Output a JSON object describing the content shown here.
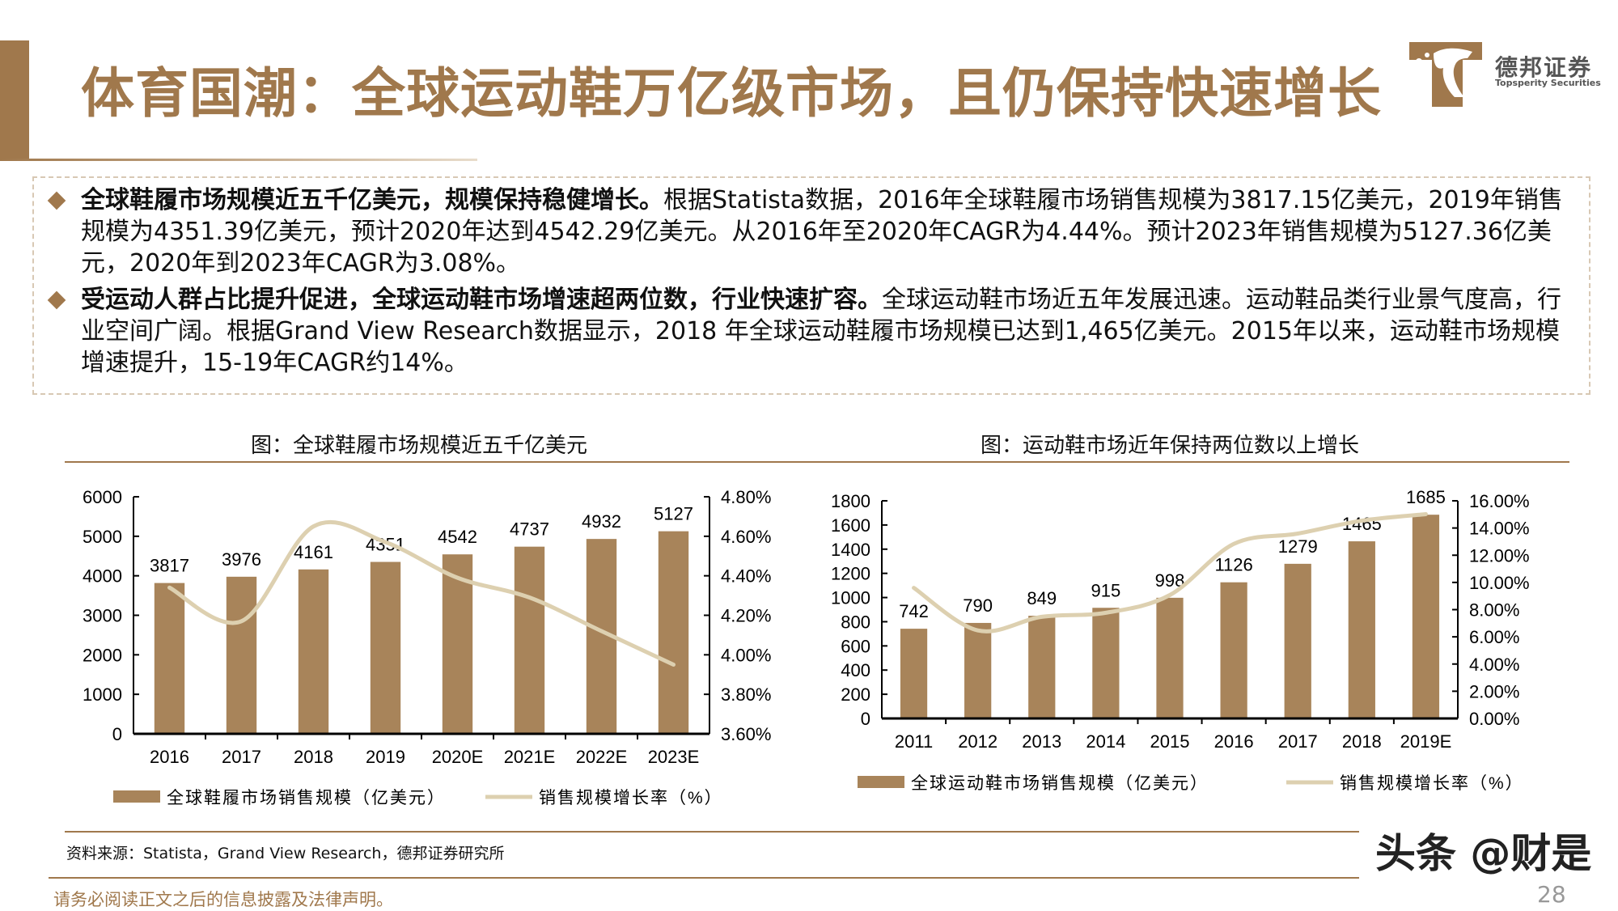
{
  "header": {
    "title": "体育国潮：全球运动鞋万亿级市场，且仍保持快速增长",
    "logo_cn": "德邦证券",
    "logo_en": "Topsperity Securities"
  },
  "bullets": [
    {
      "bold": "全球鞋履市场规模近五千亿美元，规模保持稳健增长。",
      "text": "根据Statista数据，2016年全球鞋履市场销售规模为3817.15亿美元，2019年销售规模为4351.39亿美元，预计2020年达到4542.29亿美元。从2016年至2020年CAGR为4.44%。预计2023年销售规模为5127.36亿美元，2020年到2023年CAGR为3.08%。"
    },
    {
      "bold": "受运动人群占比提升促进，全球运动鞋市场增速超两位数，行业快速扩容。",
      "text": "全球运动鞋市场近五年发展迅速。运动鞋品类行业景气度高，行业空间广阔。根据Grand View Research数据显示，2018 年全球运动鞋履市场规模已达到1,465亿美元。2015年以来，运动鞋市场规模增速提升，15-19年CAGR约14%。"
    }
  ],
  "colors": {
    "accent": "#a0784c",
    "bar": "#a8845a",
    "line": "#ddd0b0"
  },
  "chart_data": [
    {
      "type": "bar",
      "title": "图：全球鞋履市场规模近五千亿美元",
      "categories": [
        "2016",
        "2017",
        "2018",
        "2019",
        "2020E",
        "2021E",
        "2022E",
        "2023E"
      ],
      "series": [
        {
          "name": "全球鞋履市场销售规模（亿美元）",
          "type": "bar",
          "axis": "left",
          "values": [
            3817,
            3976,
            4161,
            4351,
            4542,
            4737,
            4932,
            5127
          ]
        },
        {
          "name": "销售规模增长率（%）",
          "type": "line",
          "axis": "right",
          "values": [
            4.34,
            4.17,
            4.65,
            4.57,
            4.39,
            4.29,
            4.12,
            3.95
          ]
        }
      ],
      "ylim": [
        0,
        6000
      ],
      "yticks": [
        "0",
        "1000",
        "2000",
        "3000",
        "4000",
        "5000",
        "6000"
      ],
      "y2lim": [
        3.6,
        4.8
      ],
      "y2ticks": [
        "3.60%",
        "3.80%",
        "4.00%",
        "4.20%",
        "4.40%",
        "4.60%",
        "4.80%"
      ],
      "legend": "bottom",
      "grid": false
    },
    {
      "type": "bar",
      "title": "图：运动鞋市场近年保持两位数以上增长",
      "categories": [
        "2011",
        "2012",
        "2013",
        "2014",
        "2015",
        "2016",
        "2017",
        "2018",
        "2019E"
      ],
      "series": [
        {
          "name": "全球运动鞋市场销售规模（亿美元）",
          "type": "bar",
          "axis": "left",
          "values": [
            742,
            790,
            849,
            915,
            998,
            1126,
            1279,
            1465,
            1685
          ]
        },
        {
          "name": "销售规模增长率（%）",
          "type": "line",
          "axis": "right",
          "values": [
            9.6,
            6.47,
            7.47,
            7.77,
            9.07,
            12.83,
            13.59,
            14.54,
            15.02
          ]
        }
      ],
      "ylim": [
        0,
        1800
      ],
      "yticks": [
        "0",
        "200",
        "400",
        "600",
        "800",
        "1000",
        "1200",
        "1400",
        "1600",
        "1800"
      ],
      "y2lim": [
        0,
        16
      ],
      "y2ticks": [
        "0.00%",
        "2.00%",
        "4.00%",
        "6.00%",
        "8.00%",
        "10.00%",
        "12.00%",
        "14.00%",
        "16.00%"
      ],
      "legend": "bottom",
      "grid": false
    }
  ],
  "footer": {
    "source": "资料来源：Statista，Grand  View  Research，德邦证券研究所",
    "disclaimer": "请务必阅读正文之后的信息披露及法律声明。",
    "watermark": "头条 @财是",
    "page": "28"
  }
}
